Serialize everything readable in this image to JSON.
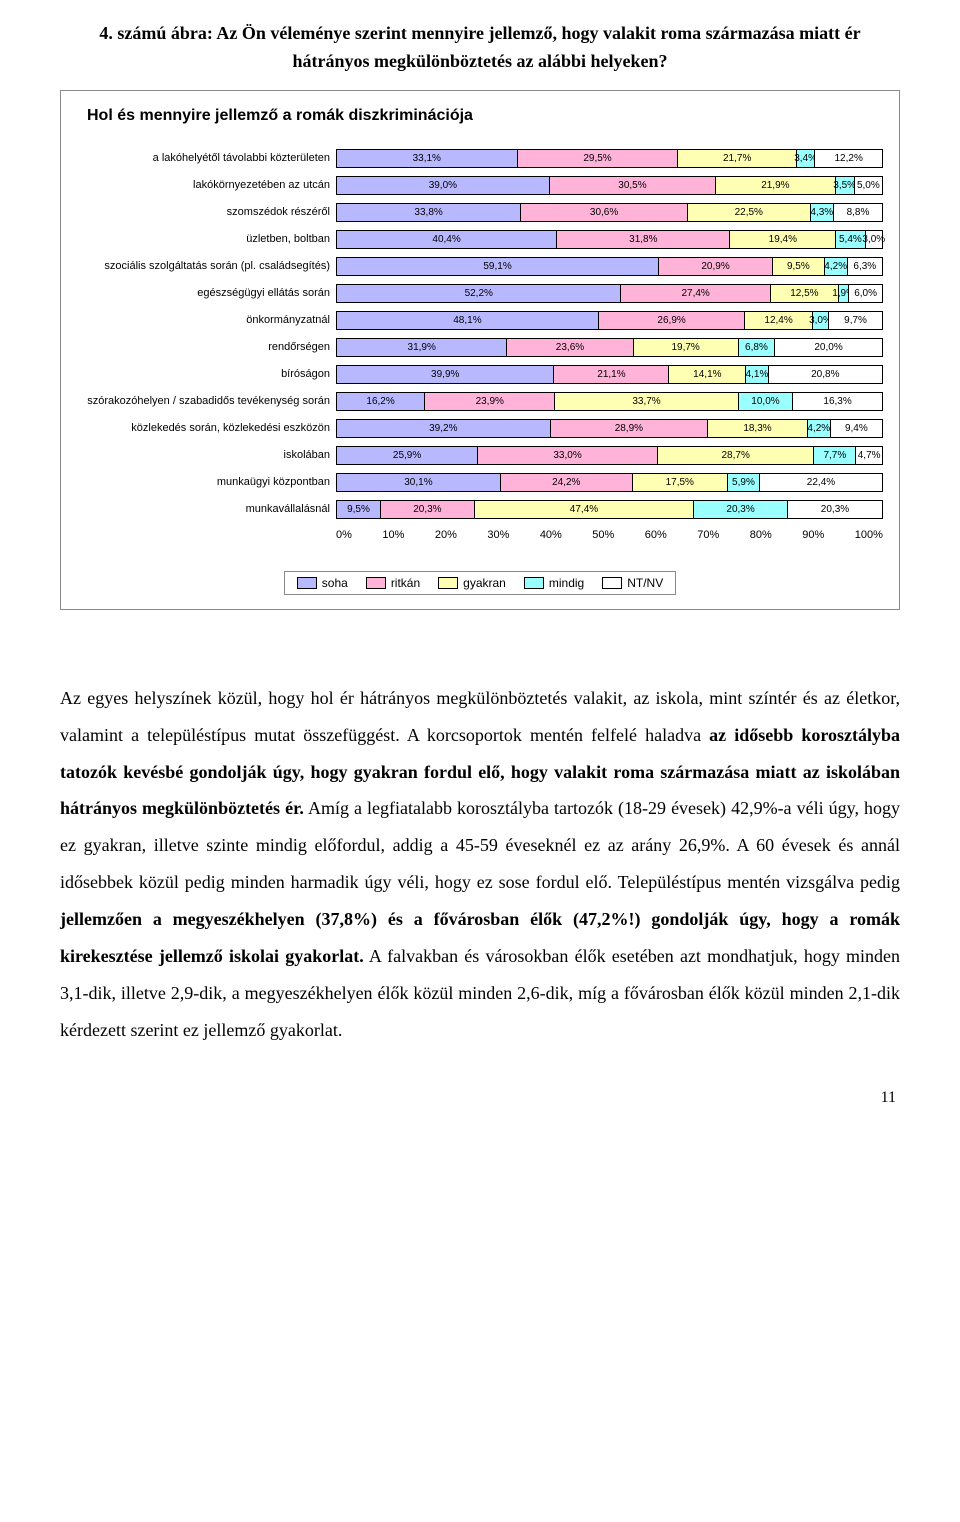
{
  "figure_title": "4. számú ábra: Az Ön véleménye szerint mennyire jellemző, hogy valakit roma származása miatt ér hátrányos megkülönböztetés az alábbi helyeken?",
  "chart": {
    "type": "stacked-bar-horizontal",
    "title": "Hol és mennyire jellemző a romák diszkriminációja",
    "categories": [
      "a lakóhelyétől távolabbi közterületen",
      "lakókörnyezetében az utcán",
      "szomszédok részéről",
      "üzletben, boltban",
      "szociális szolgáltatás során (pl. családsegítés)",
      "egészségügyi ellátás során",
      "önkormányzatnál",
      "rendőrségen",
      "bíróságon",
      "szórakozóhelyen / szabadidős tevékenység során",
      "közlekedés során, közlekedési eszközön",
      "iskolában",
      "munkaügyi központban",
      "munkavállalásnál"
    ],
    "series_labels": [
      "soha",
      "ritkán",
      "gyakran",
      "mindig",
      "NT/NV"
    ],
    "series_colors": [
      "#b8b8ff",
      "#ffb3d9",
      "#ffffb3",
      "#99ffff",
      "#ffffff"
    ],
    "series_borders": [
      "#000",
      "#000",
      "#000",
      "#000",
      "#000"
    ],
    "data": [
      [
        33.1,
        29.5,
        21.7,
        3.4,
        12.2
      ],
      [
        39.0,
        30.5,
        21.9,
        3.5,
        5.0
      ],
      [
        33.8,
        30.6,
        22.5,
        4.3,
        8.8
      ],
      [
        40.4,
        31.8,
        19.4,
        5.4,
        3.0
      ],
      [
        59.1,
        20.9,
        9.5,
        4.2,
        6.3
      ],
      [
        52.2,
        27.4,
        12.5,
        1.9,
        6.0
      ],
      [
        48.1,
        26.9,
        12.4,
        3.0,
        9.7
      ],
      [
        31.9,
        23.6,
        19.7,
        6.8,
        20.0
      ],
      [
        39.9,
        21.1,
        14.1,
        4.1,
        20.8
      ],
      [
        16.2,
        23.9,
        33.7,
        10.0,
        16.3
      ],
      [
        39.2,
        28.9,
        18.3,
        4.2,
        9.4
      ],
      [
        25.9,
        33.0,
        28.7,
        7.7,
        4.7
      ],
      [
        30.1,
        24.2,
        17.5,
        5.9,
        22.4
      ],
      [
        9.5,
        20.3,
        47.4,
        20.3,
        20.3
      ]
    ],
    "value_labels": [
      [
        "33,1%",
        "29,5%",
        "21,7%",
        "3,4%",
        "12,2%"
      ],
      [
        "39,0%",
        "30,5%",
        "21,9%",
        "3,5%",
        "5,0%"
      ],
      [
        "33,8%",
        "30,6%",
        "22,5%",
        "4,3%",
        "8,8%"
      ],
      [
        "40,4%",
        "31,8%",
        "19,4%",
        "5,4%",
        "3,0%"
      ],
      [
        "59,1%",
        "20,9%",
        "9,5%",
        "4,2%",
        "6,3%"
      ],
      [
        "52,2%",
        "27,4%",
        "12,5%",
        "1,9%",
        "6,0%"
      ],
      [
        "48,1%",
        "26,9%",
        "12,4%",
        "3,0%",
        "9,7%"
      ],
      [
        "31,9%",
        "23,6%",
        "19,7%",
        "6,8%",
        "20,0%"
      ],
      [
        "39,9%",
        "21,1%",
        "14,1%",
        "4,1%",
        "20,8%"
      ],
      [
        "16,2%",
        "23,9%",
        "33,7%",
        "10,0%",
        "16,3%"
      ],
      [
        "39,2%",
        "28,9%",
        "18,3%",
        "4,2%",
        "9,4%"
      ],
      [
        "25,9%",
        "33,0%",
        "28,7%",
        "7,7%",
        "4,7%"
      ],
      [
        "30,1%",
        "24,2%",
        "17,5%",
        "5,9%",
        "22,4%"
      ],
      [
        "9,5%",
        "20,3%",
        "47,4%",
        "20,3%",
        "20,3%"
      ]
    ],
    "xaxis_ticks": [
      "0%",
      "10%",
      "20%",
      "30%",
      "40%",
      "50%",
      "60%",
      "70%",
      "80%",
      "90%",
      "100%"
    ],
    "background_color": "#ffffff",
    "label_fontsize": 11,
    "value_fontsize": 10
  },
  "body_paragraph_parts": [
    {
      "t": "Az egyes helyszínek közül, hogy hol ér hátrányos megkülönböztetés valakit, az iskola, mint színtér és az életkor, valamint a településtípus mutat összefüggést. A korcsoportok mentén felfelé haladva ",
      "b": false
    },
    {
      "t": "az idősebb korosztályba tatozók kevésbé gondolják úgy, hogy gyakran fordul elő, hogy valakit roma származása miatt az iskolában hátrányos megkülönböztetés ér.",
      "b": true
    },
    {
      "t": " Amíg a legfiatalabb korosztályba tartozók (18-29 évesek) 42,9%-a véli úgy, hogy ez gyakran, illetve szinte mindig előfordul, addig a 45-59 éveseknél ez az arány 26,9%. A 60 évesek és annál idősebbek közül pedig minden harmadik úgy véli, hogy ez sose fordul elő. Településtípus mentén vizsgálva pedig ",
      "b": false
    },
    {
      "t": "jellemzően a megyeszékhelyen (37,8%) és a fővárosban élők (47,2%!) gondolják úgy, hogy a romák kirekesztése jellemző iskolai gyakorlat.",
      "b": true
    },
    {
      "t": " A falvakban és városokban élők esetében azt mondhatjuk, hogy minden 3,1-dik, illetve 2,9-dik, a megyeszékhelyen élők közül minden 2,6-dik, míg a fővárosban élők közül minden 2,1-dik kérdezett szerint ez jellemző gyakorlat.",
      "b": false
    }
  ],
  "page_number": "11"
}
